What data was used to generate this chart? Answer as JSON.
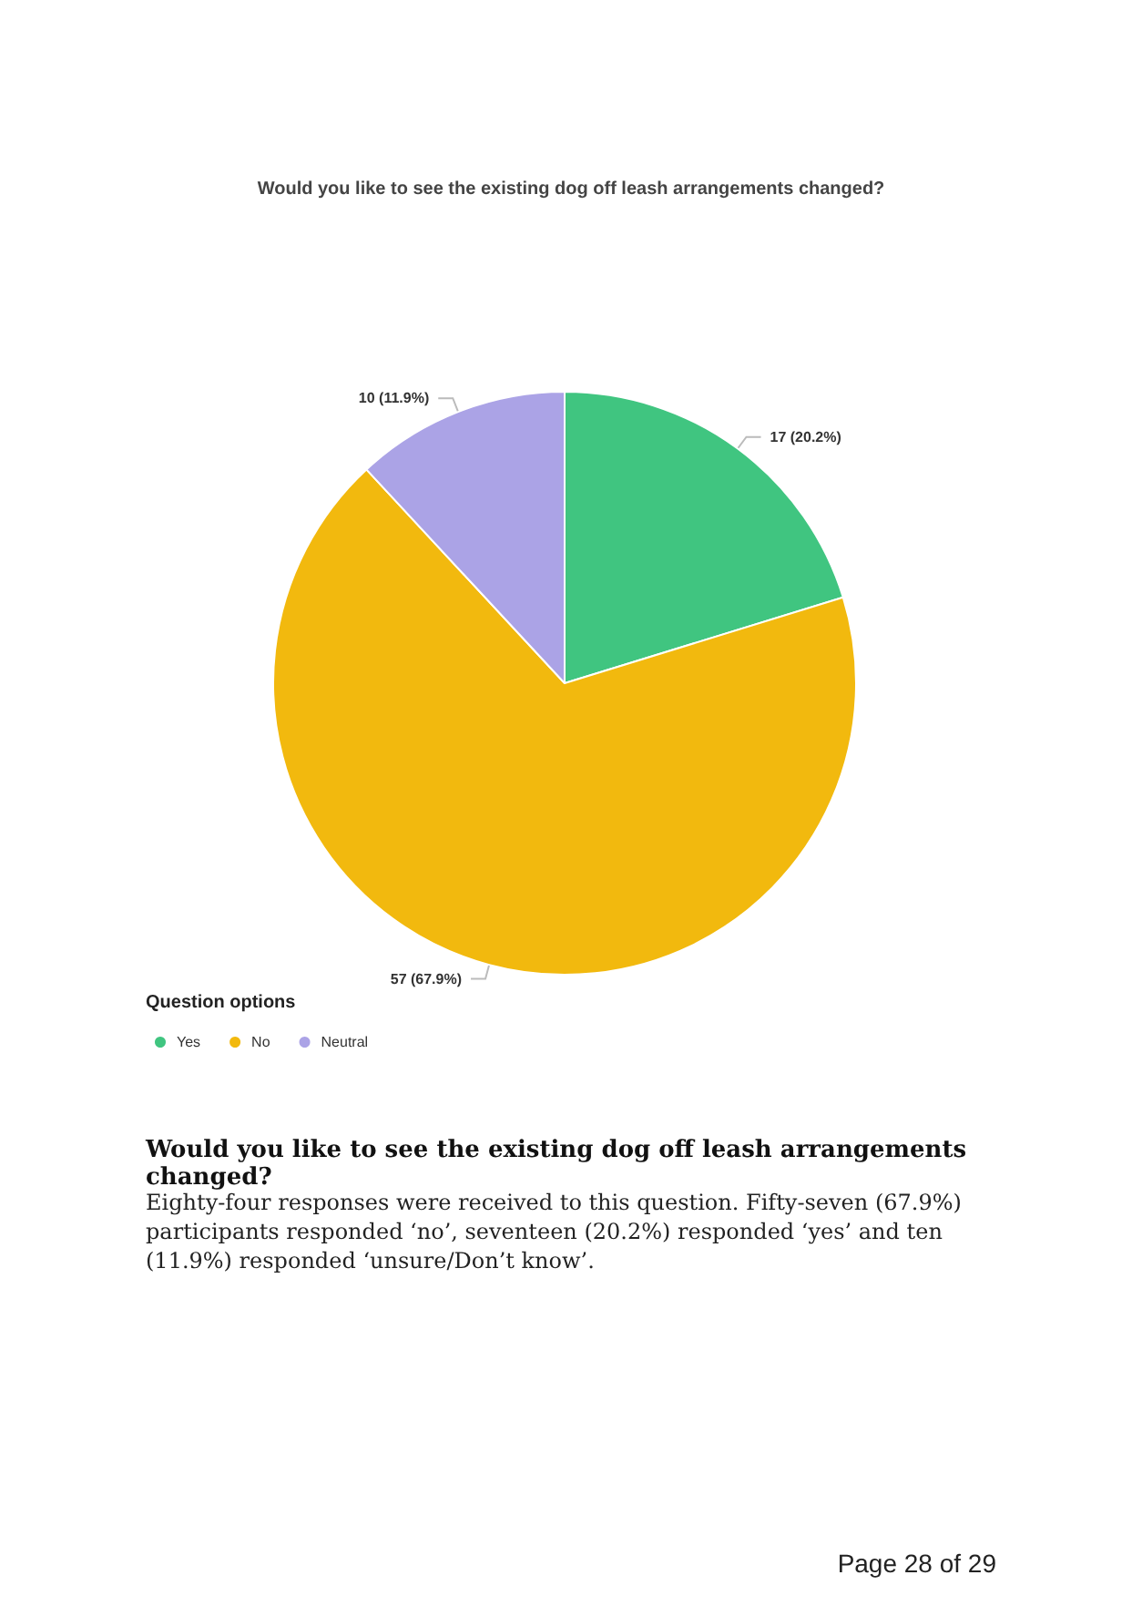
{
  "chart_data": {
    "type": "pie",
    "title": "Would you like to see the existing dog off leash arrangements changed?",
    "categories": [
      "Yes",
      "No",
      "Neutral"
    ],
    "values": [
      17,
      57,
      10
    ],
    "colors": [
      "#40c580",
      "#f2b90e",
      "#aba3e6"
    ],
    "value_labels": [
      "17 (20.2%)",
      "57 (67.9%)",
      "10 (11.9%)"
    ],
    "legend_title": "Question options",
    "legend": "bottom left",
    "annotations": [
      "Would you like to see the existing dog off leash arrangements changed?",
      "Eighty-four responses were received to this question. Fifty-seven (67.9%) participants responded ‘no’, seventeen (20.2%) responded ‘yes’ and ten (11.9%) responded ‘unsure/Don’t know’.",
      "Page 28 of 29"
    ]
  }
}
